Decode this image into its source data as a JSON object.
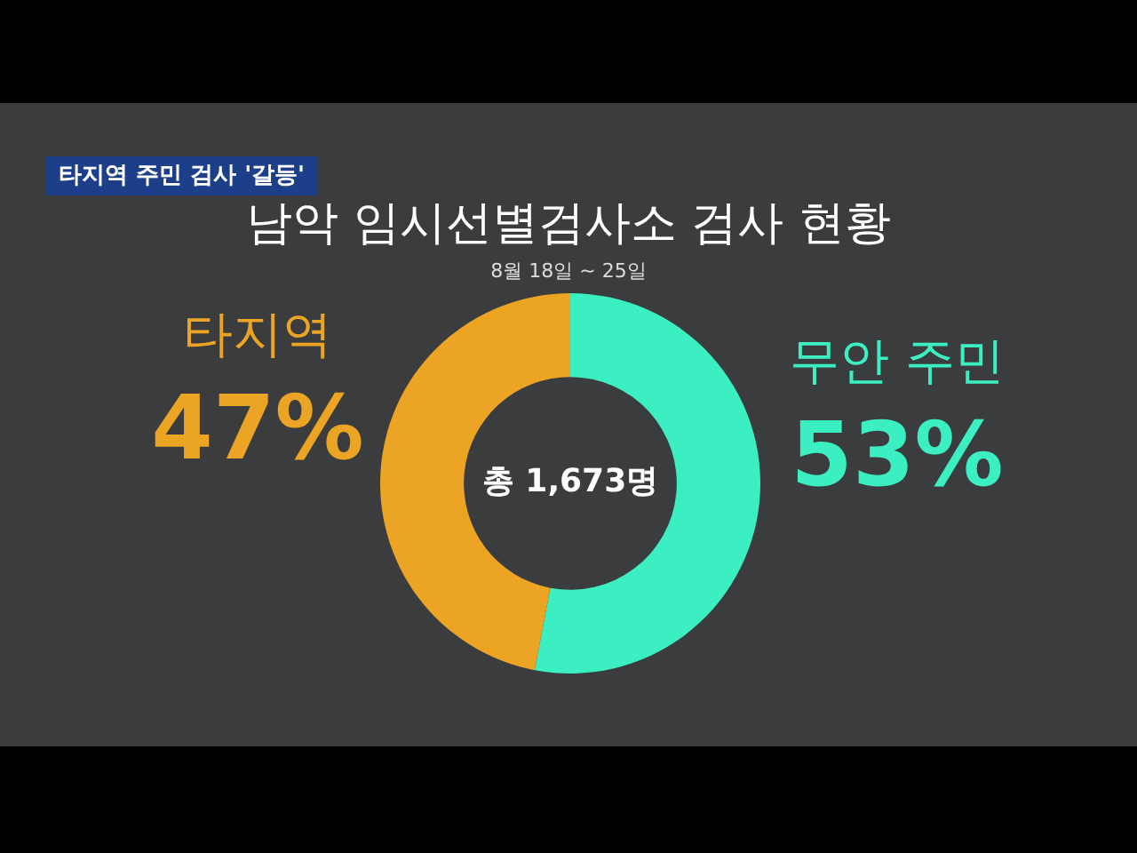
{
  "chart_data": {
    "type": "donut",
    "title": "남악 임시선별검사소 검사 현황",
    "subtitle": "8월 18일 ~ 25일",
    "categories": [
      "무안 주민",
      "타지역"
    ],
    "values": [
      53,
      47
    ],
    "colors": [
      "#3cefc2",
      "#eba424"
    ],
    "value_labels": [
      "53%",
      "47%"
    ],
    "legend": false,
    "annotations": [
      "타지역 주민 검사 '갈등'",
      "총 1,673명"
    ]
  }
}
